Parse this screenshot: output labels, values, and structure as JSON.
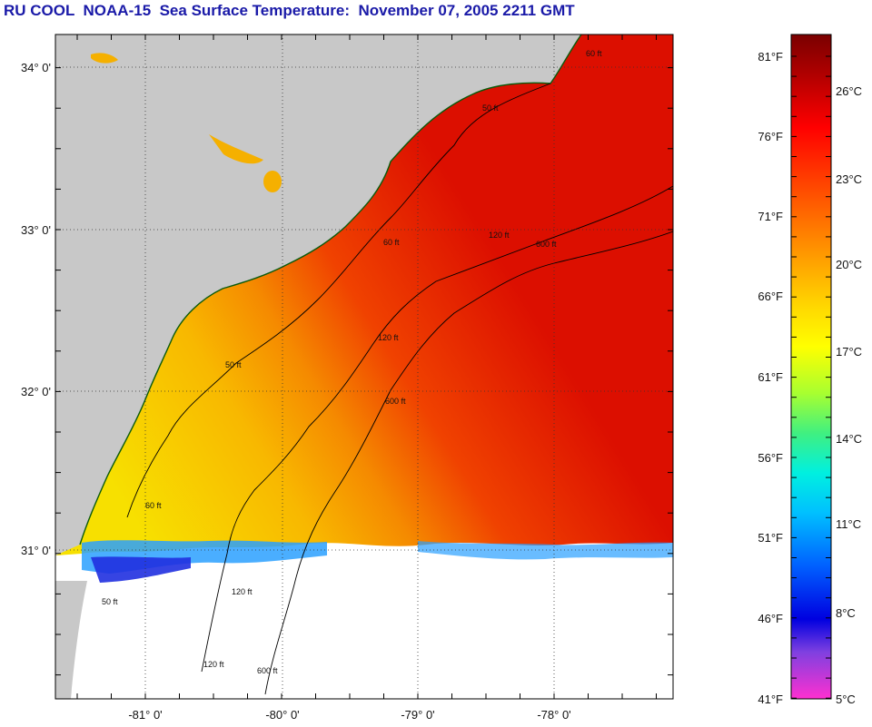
{
  "title": "RU COOL  NOAA-15  Sea Surface Temperature:  November 07, 2005 2211 GMT",
  "latitude_labels": [
    "34° 0'",
    "33° 0'",
    "32° 0'",
    "31° 0'"
  ],
  "longitude_labels": [
    "-81° 0'",
    "-80° 0'",
    "-79° 0'",
    "-78° 0'"
  ],
  "contour_labels": {
    "fifty": "50 ft",
    "sixty": "60 ft",
    "one_twenty": "120 ft",
    "six_hundred": "600 ft"
  },
  "colorbar": {
    "fahrenheit": [
      "81°F",
      "76°F",
      "71°F",
      "66°F",
      "61°F",
      "56°F",
      "51°F",
      "46°F",
      "41°F"
    ],
    "celsius": [
      "26°C",
      "23°C",
      "20°C",
      "17°C",
      "14°C",
      "11°C",
      "8°C",
      "5°C"
    ]
  },
  "colors": {
    "title": "#1a1aa8",
    "land": "#c8c8c8",
    "no_data": "#ffffff",
    "warm": "#e01000",
    "cool": "#f7d400"
  }
}
